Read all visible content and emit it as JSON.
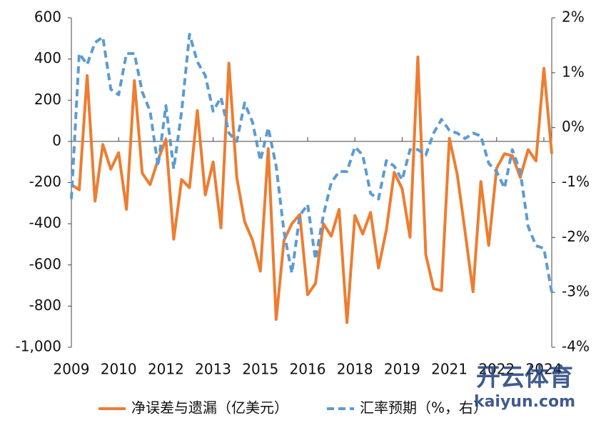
{
  "chart_data": {
    "type": "line",
    "categories": [
      "2009",
      null,
      null,
      null,
      null,
      null,
      "2010",
      null,
      null,
      null,
      null,
      null,
      "2012",
      null,
      null,
      null,
      null,
      null,
      "2013",
      null,
      null,
      null,
      null,
      null,
      "2015",
      null,
      null,
      null,
      null,
      null,
      "2016",
      null,
      null,
      null,
      null,
      null,
      "2018",
      null,
      null,
      null,
      null,
      null,
      "2019",
      null,
      null,
      null,
      null,
      null,
      "2021",
      null,
      null,
      null,
      null,
      null,
      "2022",
      null,
      null,
      null,
      null,
      null,
      "2024",
      null
    ],
    "series": [
      {
        "name": "净误差与遗漏（亿美元）",
        "color": "#ED7D31",
        "axis": "y",
        "values": [
          -210,
          -235,
          320,
          -290,
          -15,
          -135,
          -55,
          -330,
          295,
          -155,
          -210,
          -90,
          10,
          -475,
          -185,
          -225,
          150,
          -260,
          -100,
          -420,
          380,
          -175,
          -390,
          -480,
          -630,
          -35,
          -865,
          -480,
          -400,
          -355,
          -745,
          -690,
          -400,
          -460,
          -330,
          -880,
          -360,
          -450,
          -345,
          -615,
          -430,
          -150,
          -230,
          -465,
          410,
          -550,
          -715,
          -725,
          15,
          -160,
          -440,
          -730,
          -195,
          -505,
          -130,
          -60,
          -70,
          -175,
          -40,
          -95,
          355,
          -60
        ]
      },
      {
        "name": "汇率预期（%，右）",
        "color": "#5B9BD5",
        "axis": "y2",
        "values": [
          -1.3,
          1.35,
          1.15,
          1.55,
          1.65,
          0.7,
          0.6,
          1.35,
          1.35,
          0.65,
          0.3,
          -0.7,
          0.4,
          -0.75,
          0.3,
          1.7,
          1.2,
          0.95,
          0.3,
          0.55,
          -0.1,
          -0.25,
          0.45,
          0.1,
          -0.6,
          0.0,
          -0.7,
          -1.9,
          -2.65,
          -1.6,
          -1.4,
          -2.4,
          -1.6,
          -1.0,
          -0.8,
          -0.8,
          -0.35,
          -0.5,
          -1.2,
          -1.3,
          -0.6,
          -0.7,
          -0.95,
          -0.4,
          -0.4,
          -0.5,
          -0.1,
          0.15,
          -0.05,
          -0.1,
          -0.2,
          -0.1,
          -0.15,
          -0.65,
          -0.8,
          -1.1,
          -0.4,
          -0.8,
          -1.8,
          -2.15,
          -2.2,
          -3.0
        ]
      }
    ],
    "ylim": [
      -1000,
      600
    ],
    "yticks": [
      {
        "value": -1000,
        "label": "-1,000"
      },
      -800,
      -600,
      -400,
      -200,
      0,
      200,
      400,
      600
    ],
    "y2lim": [
      -4,
      2
    ],
    "y2ticks": [
      {
        "value": -4,
        "label": "-4%"
      },
      {
        "value": -3,
        "label": "-3%"
      },
      {
        "value": -2,
        "label": "-2%"
      },
      {
        "value": -1,
        "label": "-1%"
      },
      {
        "value": 0,
        "label": "0%"
      },
      {
        "value": 1,
        "label": "1%"
      },
      {
        "value": 2,
        "label": "2%"
      }
    ],
    "legend": "bottom"
  },
  "watermark": {
    "brand": "开云体育",
    "url": "kaiyun.com"
  }
}
